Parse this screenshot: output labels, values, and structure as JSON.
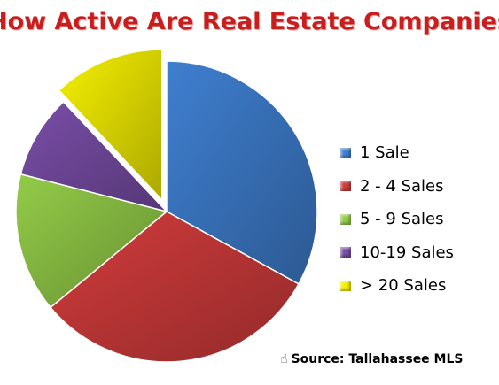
{
  "chart_data": {
    "type": "pie",
    "title": "How Active Are Real Estate Companies",
    "categories": [
      "1 Sale",
      "2 - 4 Sales",
      "5 - 9 Sales",
      "10-19 Sales",
      "> 20 Sales"
    ],
    "values": [
      33,
      31,
      15,
      9,
      12
    ],
    "colors": [
      "#3f7fd0",
      "#d23c3c",
      "#93cc48",
      "#7a4ea8",
      "#f5f000"
    ],
    "exploded": [
      "> 20 Sales"
    ],
    "legend_position": "right"
  },
  "source": {
    "icon": "hand-point-icon",
    "text": "Source: Tallahassee MLS"
  }
}
